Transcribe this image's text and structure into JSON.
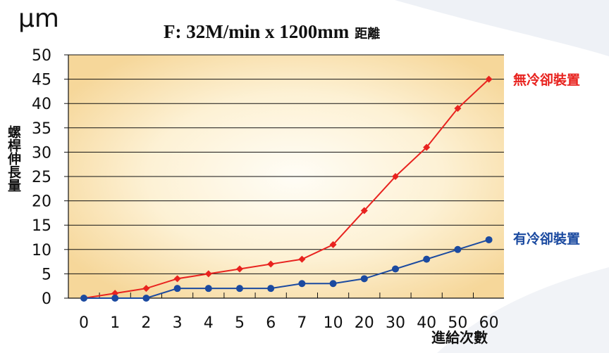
{
  "unit": "μm",
  "title": "F: 32M/min x 1200mm",
  "title_suffix": "距離",
  "ylabel": "螺桿伸長量",
  "xlabel": "進給次數",
  "colors": {
    "red_series": "#e8231f",
    "blue_series": "#1b4aa0",
    "plot_bg_edge": "#f6d79a",
    "plot_bg_center": "#fffdf6",
    "grid": "#111111"
  },
  "chart_data": {
    "type": "line",
    "categories": [
      "0",
      "1",
      "2",
      "3",
      "4",
      "5",
      "6",
      "7",
      "10",
      "20",
      "30",
      "40",
      "50",
      "60"
    ],
    "series": [
      {
        "name": "無冷卻裝置",
        "marker": "diamond",
        "color": "#e8231f",
        "values": [
          0,
          1,
          2,
          4,
          5,
          6,
          7,
          8,
          11,
          18,
          25,
          31,
          39,
          45
        ]
      },
      {
        "name": "有冷卻裝置",
        "marker": "circle",
        "color": "#1b4aa0",
        "values": [
          0,
          0,
          0,
          2,
          2,
          2,
          2,
          3,
          3,
          4,
          6,
          8,
          10,
          12
        ]
      }
    ],
    "yticks": [
      0,
      5,
      10,
      15,
      20,
      25,
      30,
      35,
      40,
      45,
      50
    ],
    "ylim": [
      0,
      50
    ],
    "grid": "horizontal",
    "legend": "right, next to line ends"
  }
}
